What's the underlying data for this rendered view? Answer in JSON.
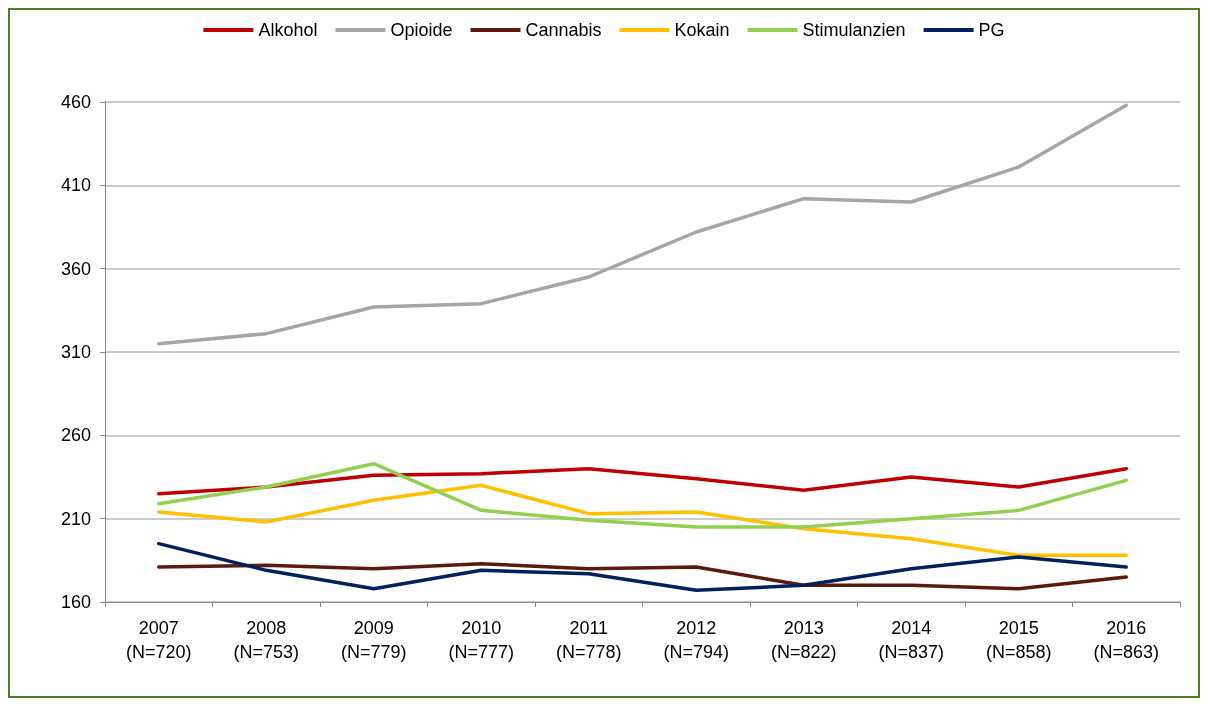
{
  "chart_data": {
    "type": "line",
    "categories": [
      "2007\n(N=720)",
      "2008\n(N=753)",
      "2009\n(N=779)",
      "2010\n(N=777)",
      "2011\n(N=778)",
      "2012\n(N=794)",
      "2013\n(N=822)",
      "2014\n(N=837)",
      "2015\n(N=858)",
      "2016\n(N=863)"
    ],
    "series": [
      {
        "name": "Alkohol",
        "color": "#c00000",
        "values": [
          225,
          229,
          236,
          237,
          240,
          234,
          227,
          235,
          229,
          240
        ]
      },
      {
        "name": "Opioide",
        "color": "#a6a6a6",
        "values": [
          315,
          321,
          337,
          339,
          355,
          382,
          402,
          400,
          421,
          458
        ]
      },
      {
        "name": "Cannabis",
        "color": "#5c1a0f",
        "values": [
          181,
          182,
          180,
          183,
          180,
          181,
          170,
          170,
          168,
          175
        ]
      },
      {
        "name": "Kokain",
        "color": "#ffc000",
        "values": [
          214,
          208,
          221,
          230,
          213,
          214,
          204,
          198,
          188,
          188
        ]
      },
      {
        "name": "Stimulanzien",
        "color": "#92d050",
        "values": [
          219,
          229,
          243,
          215,
          209,
          205,
          205,
          210,
          215,
          233
        ]
      },
      {
        "name": "PG",
        "color": "#002060",
        "values": [
          195,
          179,
          168,
          179,
          177,
          167,
          170,
          180,
          187,
          181
        ]
      }
    ],
    "ylim": [
      160,
      460
    ],
    "yticks": [
      160,
      210,
      260,
      310,
      360,
      410,
      460
    ],
    "grid": "y",
    "legend": "top",
    "marker": "none",
    "line_style": "solid"
  }
}
